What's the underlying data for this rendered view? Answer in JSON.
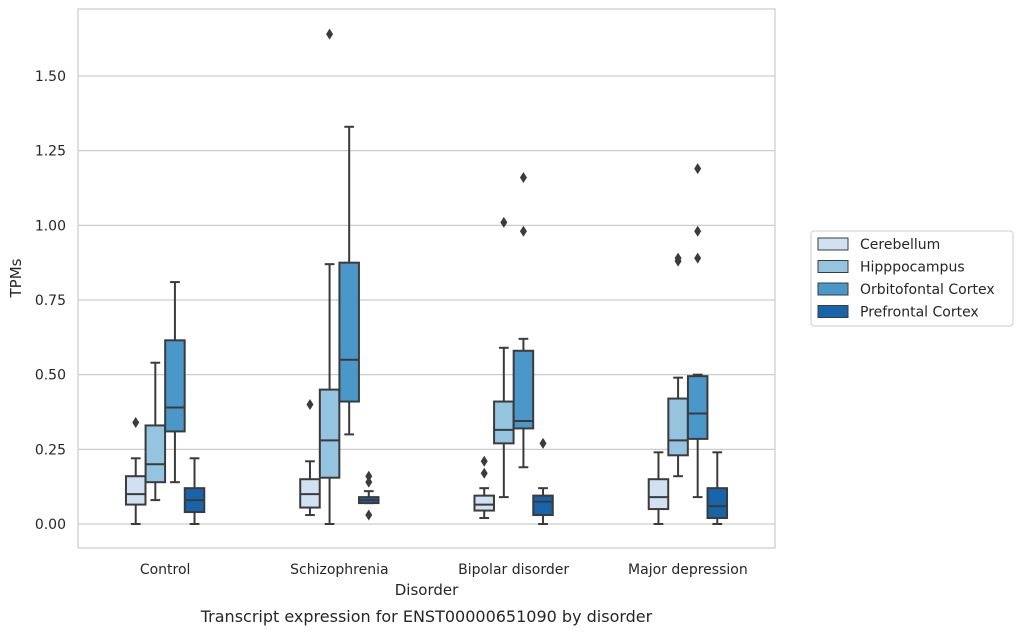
{
  "caption": "Transcript expression for ENST00000651090 by disorder",
  "chart_data": {
    "type": "box",
    "title": "",
    "xlabel": "Disorder",
    "ylabel": "TPMs",
    "ylim": [
      -0.08,
      1.72
    ],
    "yticks": [
      "0.00",
      "0.25",
      "0.50",
      "0.75",
      "1.00",
      "1.25",
      "1.50"
    ],
    "grid": "horizontal",
    "legend_position": "right",
    "categories": [
      "Control",
      "Schizophrenia",
      "Bipolar disorder",
      "Major depression"
    ],
    "series": [
      {
        "name": "Cerebellum",
        "color": "#d0e1f2",
        "boxes": [
          {
            "whisker_low": 0.0,
            "q1": 0.065,
            "median": 0.1,
            "q3": 0.16,
            "whisker_high": 0.22,
            "outliers": [
              0.34
            ]
          },
          {
            "whisker_low": 0.03,
            "q1": 0.055,
            "median": 0.1,
            "q3": 0.15,
            "whisker_high": 0.21,
            "outliers": [
              0.4
            ]
          },
          {
            "whisker_low": 0.02,
            "q1": 0.045,
            "median": 0.065,
            "q3": 0.095,
            "whisker_high": 0.12,
            "outliers": [
              0.17,
              0.21
            ]
          },
          {
            "whisker_low": 0.0,
            "q1": 0.05,
            "median": 0.09,
            "q3": 0.15,
            "whisker_high": 0.24,
            "outliers": []
          }
        ]
      },
      {
        "name": "Hipppocampus",
        "color": "#94c4df",
        "boxes": [
          {
            "whisker_low": 0.08,
            "q1": 0.14,
            "median": 0.2,
            "q3": 0.33,
            "whisker_high": 0.54,
            "outliers": []
          },
          {
            "whisker_low": 0.0,
            "q1": 0.155,
            "median": 0.28,
            "q3": 0.45,
            "whisker_high": 0.87,
            "outliers": [
              1.64
            ]
          },
          {
            "whisker_low": 0.09,
            "q1": 0.27,
            "median": 0.315,
            "q3": 0.41,
            "whisker_high": 0.59,
            "outliers": [
              1.01
            ]
          },
          {
            "whisker_low": 0.16,
            "q1": 0.23,
            "median": 0.28,
            "q3": 0.42,
            "whisker_high": 0.49,
            "outliers": [
              0.88,
              0.89
            ]
          }
        ]
      },
      {
        "name": "Orbitofontal Cortex",
        "color": "#4a98c9",
        "boxes": [
          {
            "whisker_low": 0.14,
            "q1": 0.31,
            "median": 0.39,
            "q3": 0.615,
            "whisker_high": 0.81,
            "outliers": []
          },
          {
            "whisker_low": 0.3,
            "q1": 0.41,
            "median": 0.55,
            "q3": 0.875,
            "whisker_high": 1.33,
            "outliers": []
          },
          {
            "whisker_low": 0.19,
            "q1": 0.32,
            "median": 0.345,
            "q3": 0.58,
            "whisker_high": 0.62,
            "outliers": [
              0.98,
              1.16
            ]
          },
          {
            "whisker_low": 0.09,
            "q1": 0.285,
            "median": 0.37,
            "q3": 0.495,
            "whisker_high": 0.5,
            "outliers": [
              0.89,
              0.98,
              1.19
            ]
          }
        ]
      },
      {
        "name": "Prefrontal Cortex",
        "color": "#1764ab",
        "boxes": [
          {
            "whisker_low": 0.0,
            "q1": 0.04,
            "median": 0.08,
            "q3": 0.12,
            "whisker_high": 0.22,
            "outliers": []
          },
          {
            "whisker_low": 0.07,
            "q1": 0.07,
            "median": 0.08,
            "q3": 0.09,
            "whisker_high": 0.11,
            "outliers": [
              0.03,
              0.14,
              0.16
            ]
          },
          {
            "whisker_low": 0.0,
            "q1": 0.03,
            "median": 0.075,
            "q3": 0.095,
            "whisker_high": 0.12,
            "outliers": [
              0.27
            ]
          },
          {
            "whisker_low": 0.0,
            "q1": 0.02,
            "median": 0.06,
            "q3": 0.12,
            "whisker_high": 0.24,
            "outliers": []
          }
        ]
      }
    ]
  }
}
